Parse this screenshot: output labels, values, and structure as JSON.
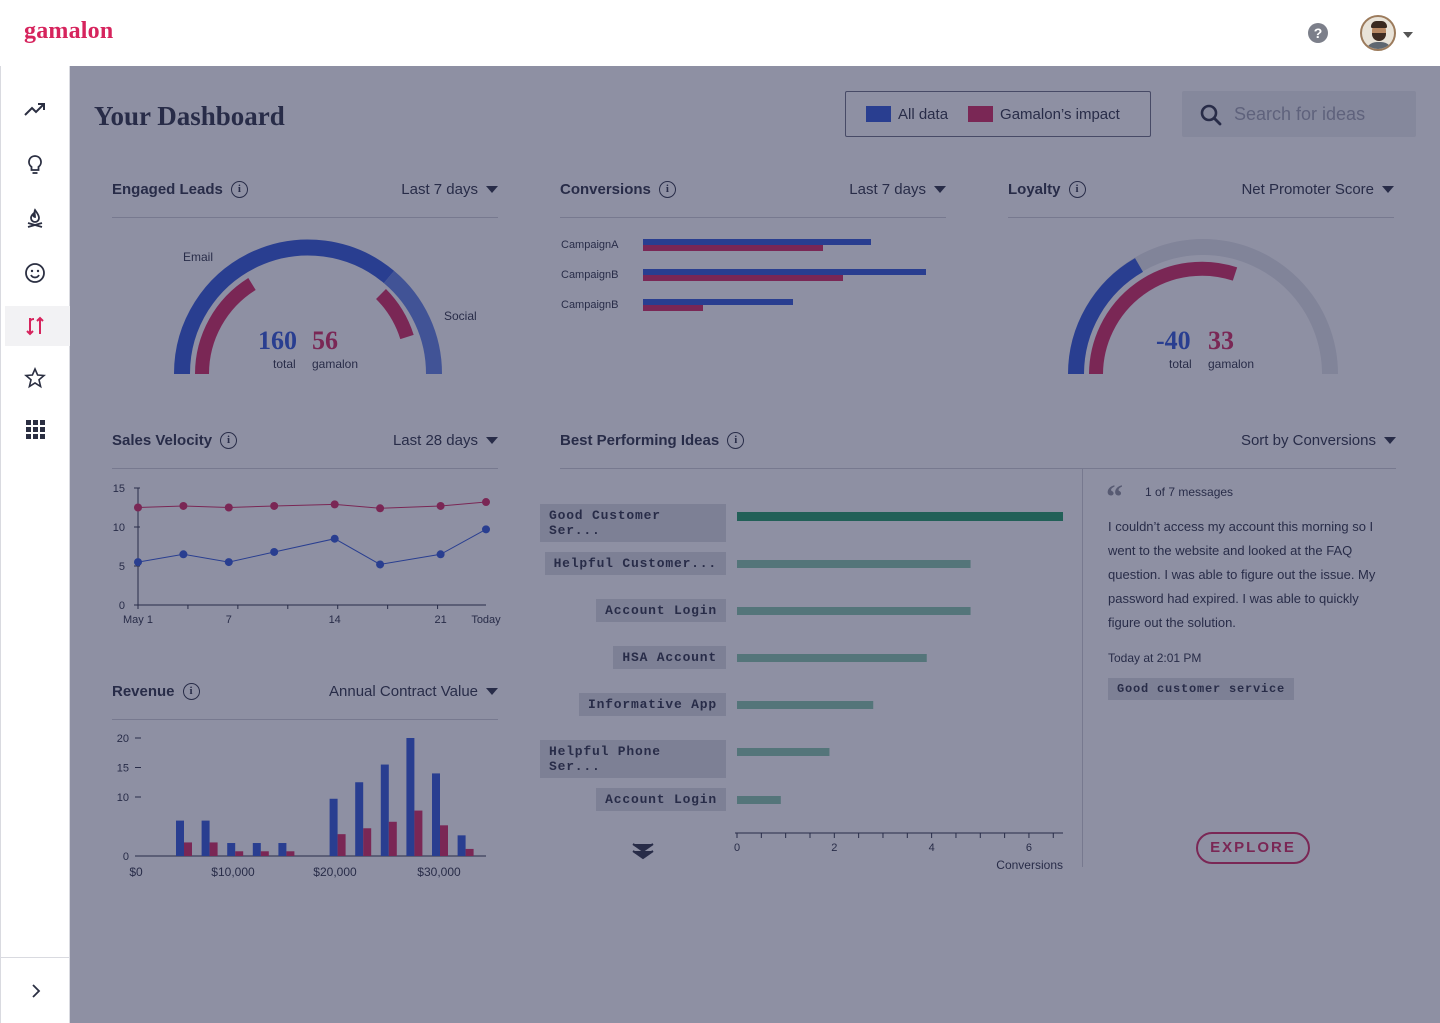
{
  "app": {
    "logo": "gamalon",
    "help": "?"
  },
  "sidebar": {
    "items": [
      {
        "name": "trending-icon"
      },
      {
        "name": "lightbulb-icon"
      },
      {
        "name": "campfire-icon"
      },
      {
        "name": "smiley-icon"
      },
      {
        "name": "arrows-swap-icon",
        "active": true
      },
      {
        "name": "star-icon"
      },
      {
        "name": "grid-icon"
      }
    ]
  },
  "header": {
    "title": "Your Dashboard",
    "legend": {
      "all_data": "All data",
      "impact": "Gamalon’s impact"
    },
    "search_placeholder": "Search for ideas"
  },
  "colors": {
    "blue": "#2d55d8",
    "magenta": "#d6245d",
    "green": "#1e9b62",
    "teal_light": "#86c6a9",
    "track": "#e4e5ea"
  },
  "engaged_leads": {
    "title": "Engaged Leads",
    "range": "Last 7 days",
    "label_email": "Email",
    "label_social": "Social",
    "total": "160",
    "total_label": "total",
    "gamalon": "56",
    "gamalon_label": "gamalon"
  },
  "conversions": {
    "title": "Conversions",
    "range": "Last 7 days",
    "chart_data": {
      "type": "bar",
      "categories": [
        "CampaignA",
        "CampaignB",
        "CampaignB"
      ],
      "series": [
        {
          "values": [
            228,
            283,
            150
          ]
        },
        {
          "values": [
            180,
            200,
            60
          ]
        }
      ]
    }
  },
  "loyalty": {
    "title": "Loyalty",
    "range": "Net Promoter Score",
    "total": "-40",
    "total_label": "total",
    "gamalon": "33",
    "gamalon_label": "gamalon"
  },
  "sales_velocity": {
    "title": "Sales Velocity",
    "range": "Last 28 days",
    "chart_data": {
      "type": "line",
      "x": [
        1,
        4,
        7,
        10,
        14,
        17,
        21,
        24
      ],
      "xticks": [
        "May 1",
        "7",
        "14",
        "21",
        "Today"
      ],
      "yticks": [
        "0",
        "5",
        "10",
        "15"
      ],
      "ylim": [
        0,
        15
      ],
      "series": [
        {
          "values": [
            12.5,
            12.7,
            12.5,
            12.7,
            12.9,
            12.4,
            12.7,
            13.2
          ]
        },
        {
          "values": [
            5.5,
            6.5,
            5.5,
            6.8,
            8.5,
            5.2,
            6.5,
            9.7
          ]
        }
      ]
    }
  },
  "revenue": {
    "title": "Revenue",
    "range": "Annual Contract Value",
    "chart_data": {
      "type": "bar",
      "xticks": [
        "$0",
        "$10,000",
        "$20,000",
        "$30,000"
      ],
      "yticks": [
        "0",
        "10",
        "15",
        "20"
      ],
      "ylim": [
        0,
        20
      ],
      "series": [
        {
          "values": [
            6,
            6,
            2.2,
            2.2,
            2.2,
            0,
            9.7,
            12.5,
            15.5,
            20,
            14,
            3.5
          ]
        },
        {
          "values": [
            2.3,
            2.3,
            0.8,
            0.8,
            0.8,
            0,
            3.7,
            4.7,
            5.8,
            7.7,
            5.2,
            1.2
          ]
        }
      ]
    }
  },
  "best_ideas": {
    "title": "Best Performing Ideas",
    "range": "Sort by Conversions",
    "chart_data": {
      "type": "bar",
      "categories": [
        "Good Customer Ser...",
        "Helpful Customer...",
        "Account Login",
        "HSA Account",
        "Informative App",
        "Helpful Phone Ser...",
        "Account Login"
      ],
      "values": [
        6.7,
        4.8,
        4.8,
        3.9,
        2.8,
        1.9,
        0.9
      ],
      "xticks": [
        "0",
        "2",
        "4",
        "6"
      ],
      "xlabel": "Conversions",
      "xlim": [
        0,
        6.7
      ]
    },
    "message": {
      "count": "1 of 7 messages",
      "text": "I couldn’t access my account this morning so I went to the website and looked at the FAQ question. I was able to figure out the issue. My password had expired. I was able to quickly figure out the solution.",
      "time": "Today at 2:01 PM",
      "tag": "Good customer service"
    },
    "explore": "EXPLORE"
  }
}
